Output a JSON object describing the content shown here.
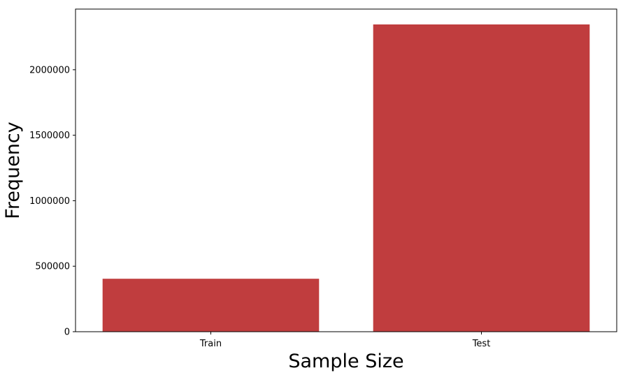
{
  "chart_data": {
    "type": "bar",
    "title": "",
    "xlabel": "Sample Size",
    "ylabel": "Frequency",
    "categories": [
      "Train",
      "Test"
    ],
    "values": [
      404290,
      2345796
    ],
    "ylim": [
      0,
      2463086
    ],
    "yticks": [
      0,
      500000,
      1000000,
      1500000,
      2000000
    ],
    "ytick_labels": [
      "0",
      "500000",
      "1000000",
      "1500000",
      "2000000"
    ],
    "grid": false,
    "legend": "none",
    "bar_color": "#c03d3e",
    "axis_color": "#000000"
  }
}
